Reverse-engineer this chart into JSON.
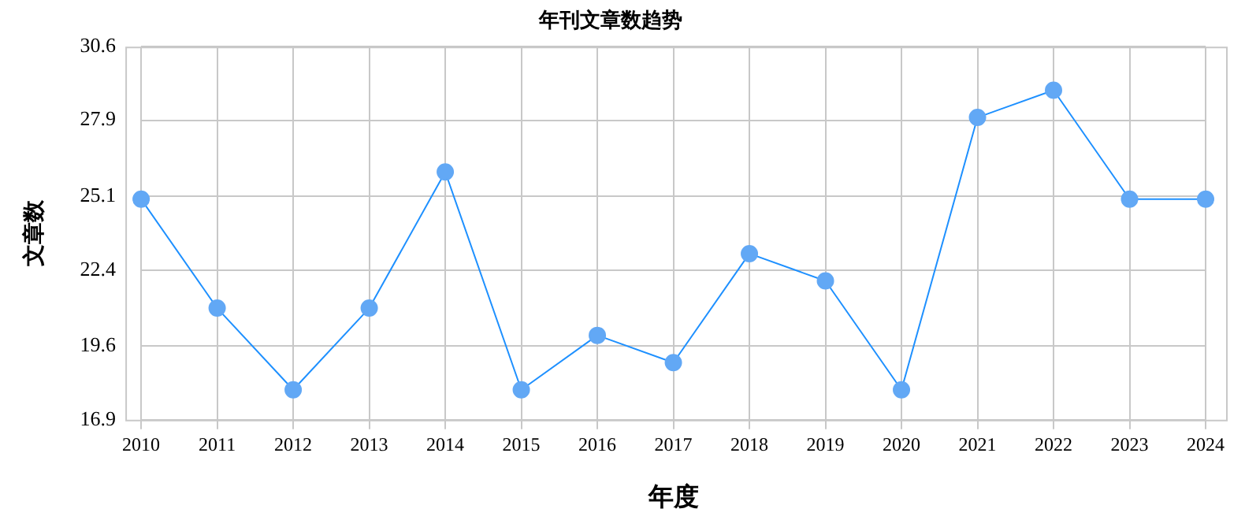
{
  "chart_data": {
    "type": "line",
    "title": "年刊文章数趋势",
    "xlabel": "年度",
    "ylabel": "文章数",
    "categories": [
      "2010",
      "2011",
      "2012",
      "2013",
      "2014",
      "2015",
      "2016",
      "2017",
      "2018",
      "2019",
      "2020",
      "2021",
      "2022",
      "2023",
      "2024"
    ],
    "series": [
      {
        "color": "#1e90ff",
        "values": [
          25,
          21,
          18,
          21,
          26,
          18,
          20,
          19,
          23,
          22,
          18,
          28,
          29,
          25,
          25
        ]
      }
    ],
    "ylim": [
      16.9,
      30.6
    ],
    "yticks": [
      16.9,
      19.6,
      22.4,
      25.1,
      27.9,
      30.6
    ],
    "grid": true,
    "legend": false,
    "marker": "circle",
    "line_style": "solid"
  }
}
